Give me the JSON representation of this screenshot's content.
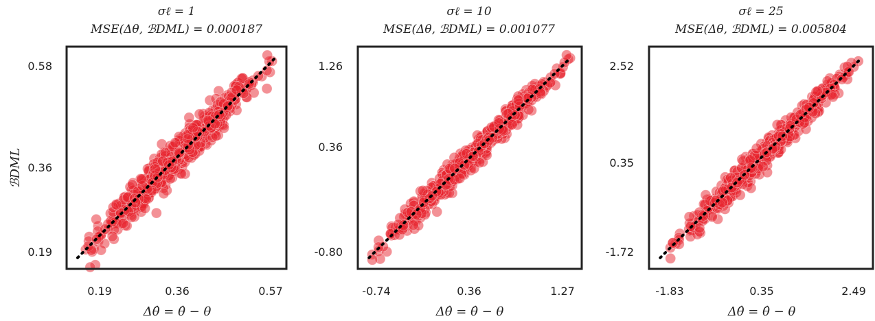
{
  "chart_data": [
    {
      "type": "scatter",
      "title": "σℓ = 1",
      "subtitle": "MSE(Δθ, ℬDML) = 0.000187",
      "xlabel": "Δθ̂ = θ̂ − θ",
      "ylabel": "ℬDML",
      "xticks": [
        "0.19",
        "0.36",
        "0.57"
      ],
      "yticks": [
        "0.19",
        "0.36",
        "0.58"
      ],
      "xlim": [
        0.15,
        0.61
      ],
      "ylim": [
        0.15,
        0.61
      ],
      "series": [
        {
          "x": [
            0.19,
            0.22,
            0.26,
            0.3,
            0.34,
            0.38,
            0.42,
            0.46,
            0.5,
            0.54,
            0.58
          ],
          "y": [
            0.19,
            0.22,
            0.26,
            0.3,
            0.34,
            0.38,
            0.42,
            0.46,
            0.5,
            0.54,
            0.58
          ],
          "spread": 0.018,
          "count": 700,
          "color": "#e8242d"
        }
      ],
      "reference_line": "y = x"
    },
    {
      "type": "scatter",
      "title": "σℓ = 10",
      "subtitle": "MSE(Δθ, ℬDML) = 0.001077",
      "xlabel": "Δθ̂ = θ̂ − θ",
      "ylabel": "",
      "xticks": [
        "-0.74",
        "0.36",
        "1.27"
      ],
      "yticks": [
        "-0.80",
        "0.36",
        "1.26"
      ],
      "xlim": [
        -0.95,
        1.38
      ],
      "ylim": [
        -0.95,
        1.38
      ],
      "series": [
        {
          "x": [
            -0.8,
            -0.6,
            -0.4,
            -0.2,
            0.0,
            0.2,
            0.4,
            0.6,
            0.8,
            1.0,
            1.26
          ],
          "y": [
            -0.8,
            -0.6,
            -0.4,
            -0.2,
            0.0,
            0.2,
            0.4,
            0.6,
            0.8,
            1.0,
            1.26
          ],
          "spread": 0.06,
          "count": 600,
          "color": "#e8242d"
        }
      ],
      "reference_line": "y = x"
    },
    {
      "type": "scatter",
      "title": "σℓ = 25",
      "subtitle": "MSE(Δθ, ℬDML) = 0.005804",
      "xlabel": "Δθ̂ = θ̂ − θ",
      "ylabel": "",
      "xticks": [
        "-1.83",
        "0.35",
        "2.49"
      ],
      "yticks": [
        "-1.72",
        "0.35",
        "2.52"
      ],
      "xlim": [
        -2.2,
        2.85
      ],
      "ylim": [
        -2.2,
        2.85
      ],
      "series": [
        {
          "x": [
            -1.72,
            -1.3,
            -0.9,
            -0.5,
            -0.1,
            0.3,
            0.7,
            1.1,
            1.5,
            1.9,
            2.52
          ],
          "y": [
            -1.72,
            -1.3,
            -0.9,
            -0.5,
            -0.1,
            0.3,
            0.7,
            1.1,
            1.5,
            1.9,
            2.52
          ],
          "spread": 0.14,
          "count": 600,
          "color": "#e8242d"
        }
      ],
      "reference_line": "y = x"
    }
  ]
}
